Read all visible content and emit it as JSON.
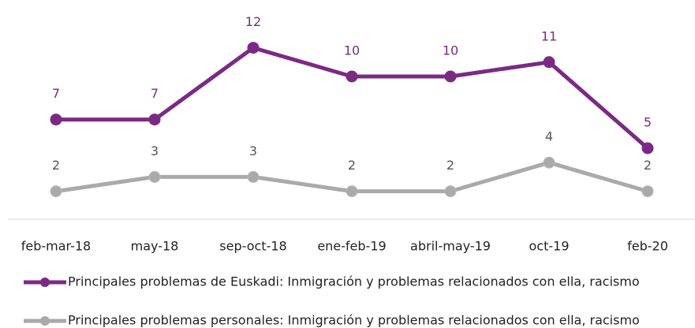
{
  "chart_data": {
    "type": "line",
    "categories": [
      "feb-mar-18",
      "may-18",
      "sep-oct-18",
      "ene-feb-19",
      "abril-may-19",
      "oct-19",
      "feb-20"
    ],
    "series": [
      {
        "name": "Principales problemas de Euskadi: Inmigración y problemas relacionados con ella, racismo",
        "color": "#7b2a84",
        "values": [
          7,
          7,
          12,
          10,
          10,
          11,
          5
        ]
      },
      {
        "name": "Principales problemas personales: Inmigración y problemas relacionados con ella, racismo",
        "color": "#aaaaaa",
        "values": [
          2,
          3,
          3,
          2,
          2,
          4,
          2
        ]
      }
    ],
    "ylim": [
      0,
      15
    ]
  }
}
